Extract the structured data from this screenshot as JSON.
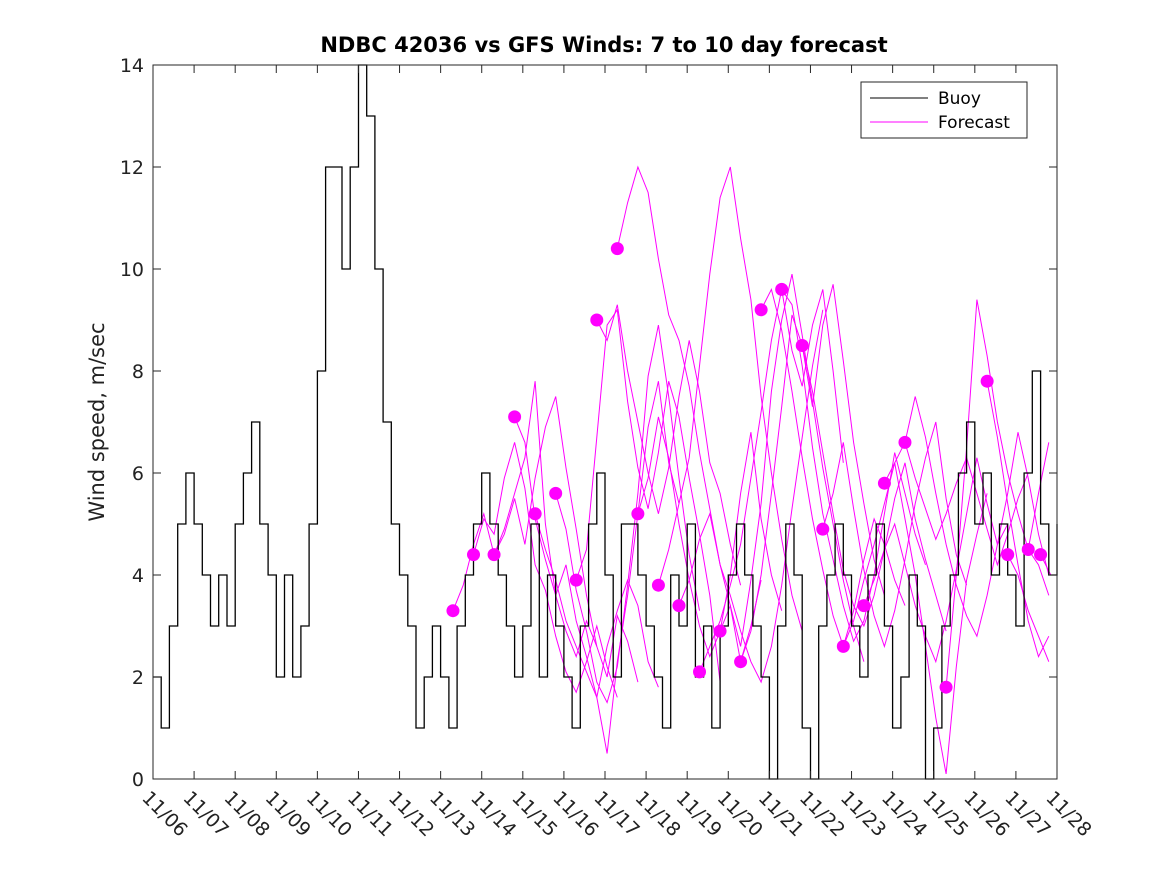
{
  "chart_data": {
    "type": "line",
    "title": "NDBC 42036 vs GFS Winds: 7 to 10 day forecast",
    "xlabel": "",
    "ylabel": "Wind speed, m/sec",
    "ylim": [
      0,
      14
    ],
    "yticks": [
      0,
      2,
      4,
      6,
      8,
      10,
      12,
      14
    ],
    "xlim": [
      0,
      22
    ],
    "xtick_labels": [
      "11/06",
      "11/07",
      "11/08",
      "11/09",
      "11/10",
      "11/11",
      "11/12",
      "11/13",
      "11/14",
      "11/15",
      "11/16",
      "11/17",
      "11/18",
      "11/19",
      "11/20",
      "11/21",
      "11/22",
      "11/23",
      "11/24",
      "11/25",
      "11/26",
      "11/27",
      "11/28"
    ],
    "grid": false,
    "legend": {
      "position": "top-right",
      "entries": [
        "Buoy",
        "Forecast"
      ]
    },
    "colors": {
      "buoy": "#000000",
      "forecast": "#ff00ff"
    },
    "buoy_series": {
      "name": "Buoy",
      "x": [
        0.0,
        0.2,
        0.4,
        0.6,
        0.8,
        1.0,
        1.2,
        1.4,
        1.6,
        1.8,
        2.0,
        2.2,
        2.4,
        2.6,
        2.8,
        3.0,
        3.2,
        3.4,
        3.6,
        3.8,
        4.0,
        4.2,
        4.4,
        4.6,
        4.8,
        5.0,
        5.2,
        5.4,
        5.6,
        5.8,
        6.0,
        6.2,
        6.4,
        6.6,
        6.8,
        7.0,
        7.2,
        7.4,
        7.6,
        7.8,
        8.0,
        8.2,
        8.4,
        8.6,
        8.8,
        9.0,
        9.2,
        9.4,
        9.6,
        9.8,
        10.0,
        10.2,
        10.4,
        10.6,
        10.8,
        11.0,
        11.2,
        11.4,
        11.6,
        11.8,
        12.0,
        12.2,
        12.4,
        12.6,
        12.8,
        13.0,
        13.2,
        13.4,
        13.6,
        13.8,
        14.0,
        14.2,
        14.4,
        14.6,
        14.8,
        15.0,
        15.2,
        15.4,
        15.6,
        15.8,
        16.0,
        16.2,
        16.4,
        16.6,
        16.8,
        17.0,
        17.2,
        17.4,
        17.6,
        17.8,
        18.0,
        18.2,
        18.4,
        18.6,
        18.8,
        19.0,
        19.2,
        19.4,
        19.6,
        19.8,
        20.0,
        20.2,
        20.4,
        20.6,
        20.8,
        21.0,
        21.2,
        21.4,
        21.6,
        21.8,
        22.0
      ],
      "values": [
        2,
        1,
        3,
        5,
        6,
        5,
        4,
        3,
        4,
        3,
        5,
        6,
        7,
        5,
        4,
        2,
        4,
        2,
        3,
        5,
        8,
        12,
        12,
        10,
        12,
        14,
        13,
        10,
        7,
        5,
        4,
        3,
        1,
        2,
        3,
        2,
        1,
        3,
        4,
        5,
        6,
        5,
        4,
        3,
        2,
        3,
        5,
        2,
        4,
        3,
        2,
        1,
        3,
        5,
        6,
        4,
        2,
        5,
        5,
        4,
        3,
        2,
        1,
        4,
        3,
        5,
        2,
        3,
        1,
        3,
        4,
        5,
        4,
        3,
        2,
        0,
        3,
        5,
        4,
        1,
        0,
        3,
        4,
        5,
        4,
        3,
        2,
        4,
        5,
        3,
        1,
        2,
        4,
        3,
        0,
        1,
        3,
        4,
        6,
        7,
        5,
        6,
        4,
        5,
        4,
        3,
        6,
        8,
        5,
        4,
        5
      ]
    },
    "forecast_series": [
      {
        "name": "Forecast",
        "start": 7.3,
        "values": [
          3.3,
          3.8,
          4.6,
          5.2,
          4.4,
          4.9,
          5.6,
          6.3,
          7.8,
          5.0,
          3.6,
          2.9,
          2.4,
          3.1,
          2.6
        ]
      },
      {
        "name": "Forecast",
        "start": 7.8,
        "values": [
          4.4,
          5.1,
          4.8,
          5.9,
          6.6,
          5.7,
          4.2,
          3.7,
          2.8,
          2.1,
          1.7,
          2.3,
          3.0,
          2.2,
          1.6
        ]
      },
      {
        "name": "Forecast",
        "start": 8.3,
        "values": [
          4.4,
          4.8,
          5.5,
          4.6,
          5.9,
          6.9,
          7.5,
          6.1,
          4.9,
          3.6,
          2.6,
          2.0,
          3.2,
          2.7,
          1.9
        ]
      },
      {
        "name": "Forecast",
        "start": 8.8,
        "values": [
          7.1,
          6.6,
          5.1,
          4.3,
          3.6,
          4.2,
          3.1,
          2.4,
          1.6,
          2.6,
          3.3,
          3.9,
          3.4,
          2.3,
          1.8
        ]
      },
      {
        "name": "Forecast",
        "start": 9.3,
        "values": [
          5.2,
          4.5,
          3.9,
          3.1,
          2.6,
          2.1,
          1.6,
          0.5,
          2.3,
          3.6,
          5.2,
          6.9,
          7.8,
          6.2,
          5.4
        ]
      },
      {
        "name": "Forecast",
        "start": 9.8,
        "values": [
          5.6,
          4.9,
          3.7,
          2.9,
          1.9,
          1.5,
          2.2,
          3.8,
          5.6,
          7.9,
          8.9,
          7.5,
          5.9,
          4.4,
          3.3
        ]
      },
      {
        "name": "Forecast",
        "start": 10.3,
        "values": [
          3.9,
          4.5,
          6.7,
          8.9,
          9.2,
          7.4,
          6.1,
          5.3,
          6.4,
          7.8,
          7.1,
          5.9,
          4.8,
          3.6,
          1.9
        ]
      },
      {
        "name": "Forecast",
        "start": 10.8,
        "values": [
          9.0,
          8.6,
          9.3,
          8.0,
          7.0,
          6.0,
          5.2,
          6.1,
          7.5,
          8.6,
          7.6,
          6.2,
          5.6,
          4.6,
          3.8
        ]
      },
      {
        "name": "Forecast",
        "start": 11.3,
        "values": [
          10.4,
          11.3,
          12.0,
          11.5,
          10.2,
          9.1,
          8.6,
          7.7,
          6.4,
          5.3,
          4.2,
          3.4,
          2.3,
          3.0,
          3.9
        ]
      },
      {
        "name": "Forecast",
        "start": 11.8,
        "values": [
          5.2,
          5.9,
          7.1,
          6.3,
          5.0,
          3.9,
          3.0,
          2.4,
          2.9,
          4.0,
          5.6,
          6.8,
          5.1,
          4.0,
          3.3
        ]
      },
      {
        "name": "Forecast",
        "start": 12.3,
        "values": [
          3.8,
          4.5,
          5.4,
          6.3,
          8.1,
          9.9,
          11.4,
          12.0,
          10.6,
          9.4,
          7.5,
          6.0,
          4.7,
          3.6,
          2.9
        ]
      },
      {
        "name": "Forecast",
        "start": 12.8,
        "values": [
          3.4,
          3.9,
          4.7,
          5.2,
          4.2,
          3.6,
          2.9,
          2.3,
          1.9,
          2.6,
          3.8,
          5.3,
          6.7,
          8.1,
          9.2
        ]
      },
      {
        "name": "Forecast",
        "start": 13.3,
        "values": [
          2.1,
          2.6,
          3.1,
          3.8,
          4.6,
          5.9,
          7.2,
          8.6,
          9.6,
          8.4,
          7.7,
          8.9,
          9.6,
          8.0,
          6.2
        ]
      },
      {
        "name": "Forecast",
        "start": 13.8,
        "values": [
          2.9,
          3.4,
          2.6,
          3.9,
          5.4,
          7.6,
          9.0,
          9.9,
          8.7,
          7.4,
          6.1,
          5.0,
          3.9,
          3.0,
          2.3
        ]
      },
      {
        "name": "Forecast",
        "start": 14.3,
        "values": [
          2.3,
          2.9,
          4.0,
          5.6,
          7.3,
          9.1,
          8.5,
          7.3,
          8.9,
          9.7,
          8.2,
          6.6,
          5.4,
          4.3,
          3.6
        ]
      },
      {
        "name": "Forecast",
        "start": 14.8,
        "values": [
          9.2,
          9.6,
          8.8,
          7.6,
          6.3,
          5.1,
          4.1,
          3.2,
          2.6,
          3.3,
          4.3,
          5.1,
          4.6,
          3.9,
          3.4
        ]
      },
      {
        "name": "Forecast",
        "start": 15.3,
        "values": [
          9.6,
          9.3,
          8.1,
          6.5,
          5.2,
          4.3,
          3.4,
          2.7,
          3.1,
          4.0,
          5.2,
          6.4,
          5.6,
          4.8,
          4.2
        ]
      },
      {
        "name": "Forecast",
        "start": 15.8,
        "values": [
          8.5,
          7.6,
          6.4,
          5.2,
          4.1,
          3.4,
          3.0,
          3.6,
          4.5,
          5.5,
          6.2,
          5.1,
          4.3,
          3.6,
          2.9
        ]
      },
      {
        "name": "Forecast",
        "start": 16.3,
        "values": [
          4.9,
          5.6,
          6.6,
          5.3,
          4.1,
          3.2,
          2.6,
          3.3,
          4.3,
          5.4,
          6.3,
          7.0,
          5.5,
          4.4,
          3.8
        ]
      },
      {
        "name": "Forecast",
        "start": 16.8,
        "values": [
          2.6,
          3.1,
          3.9,
          4.6,
          5.4,
          6.2,
          5.1,
          4.0,
          2.6,
          1.2,
          0.1,
          2.2,
          3.9,
          4.8,
          5.6
        ]
      },
      {
        "name": "Forecast",
        "start": 17.3,
        "values": [
          3.4,
          3.9,
          4.5,
          5.0,
          4.2,
          3.4,
          2.8,
          2.3,
          3.1,
          4.1,
          5.2,
          6.3,
          5.4,
          4.6,
          5.0
        ]
      },
      {
        "name": "Forecast",
        "start": 17.8,
        "values": [
          5.8,
          6.2,
          6.6,
          5.9,
          5.3,
          4.7,
          5.2,
          5.8,
          6.3,
          5.6,
          4.9,
          4.2,
          4.8,
          5.5,
          6.0
        ]
      },
      {
        "name": "Forecast",
        "start": 18.3,
        "values": [
          6.6,
          7.5,
          6.7,
          5.6,
          4.6,
          3.8,
          3.2,
          2.8,
          3.6,
          4.6,
          5.6,
          6.8,
          5.9,
          4.8,
          4.0
        ]
      },
      {
        "name": "Forecast",
        "start": 19.3,
        "values": [
          1.8,
          4.0,
          6.5,
          9.4,
          8.3,
          7.0,
          6.0,
          5.2,
          4.5,
          5.6,
          6.6,
          7.3,
          8.1,
          7.0,
          5.8
        ]
      },
      {
        "name": "Forecast",
        "start": 20.3,
        "values": [
          7.8,
          6.7,
          5.4,
          4.2,
          3.1,
          2.4,
          2.8,
          3.9,
          5.0,
          6.2,
          7.4,
          8.8,
          7.9,
          6.6,
          5.6
        ]
      },
      {
        "name": "Forecast",
        "start": 20.8,
        "values": [
          4.4,
          4.0,
          3.3,
          2.8,
          2.3,
          2.9,
          3.8,
          4.7,
          5.8,
          7.0,
          8.2,
          7.2,
          6.1,
          5.2,
          4.6
        ]
      },
      {
        "name": "Forecast",
        "start": 21.3,
        "values": [
          4.5,
          4.2,
          3.6,
          3.0,
          2.6,
          3.1,
          3.9,
          4.9,
          5.9,
          7.1,
          8.1
        ]
      },
      {
        "name": "Forecast",
        "start": 21.6,
        "values": [
          4.4,
          4.0,
          3.5,
          3.1,
          2.7,
          3.3,
          4.1,
          5.0,
          6.2,
          7.4,
          8.3
        ]
      }
    ]
  }
}
